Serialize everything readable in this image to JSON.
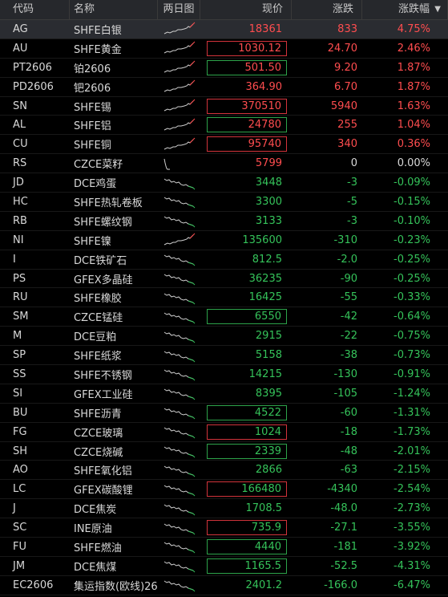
{
  "header": {
    "code": "代码",
    "name": "名称",
    "spark": "两日图",
    "price": "现价",
    "change": "涨跌",
    "pct": "涨跌幅",
    "sort_icon": "sort-desc-icon"
  },
  "colors": {
    "up": "#ff4d4f",
    "down": "#35c35a",
    "flat": "#d8d8d8",
    "box_red": "#d2333b",
    "box_green": "#2da34a"
  },
  "rows": [
    {
      "code": "AG",
      "name": "SHFE白银",
      "price": "18361",
      "change": "833",
      "pct": "4.75%",
      "dir": "up",
      "box": "",
      "trend": "up"
    },
    {
      "code": "AU",
      "name": "SHFE黄金",
      "price": "1030.12",
      "change": "24.70",
      "pct": "2.46%",
      "dir": "up",
      "box": "red",
      "trend": "up"
    },
    {
      "code": "PT2606",
      "name": "铂2606",
      "price": "501.50",
      "change": "9.20",
      "pct": "1.87%",
      "dir": "up",
      "box": "green",
      "trend": "up"
    },
    {
      "code": "PD2606",
      "name": "钯2606",
      "price": "364.90",
      "change": "6.70",
      "pct": "1.87%",
      "dir": "up",
      "box": "",
      "trend": "up"
    },
    {
      "code": "SN",
      "name": "SHFE锡",
      "price": "370510",
      "change": "5940",
      "pct": "1.63%",
      "dir": "up",
      "box": "red",
      "trend": "up"
    },
    {
      "code": "AL",
      "name": "SHFE铝",
      "price": "24780",
      "change": "255",
      "pct": "1.04%",
      "dir": "up",
      "box": "green",
      "trend": "up"
    },
    {
      "code": "CU",
      "name": "SHFE铜",
      "price": "95740",
      "change": "340",
      "pct": "0.36%",
      "dir": "up",
      "box": "red",
      "trend": "up"
    },
    {
      "code": "RS",
      "name": "CZCE菜籽",
      "price": "5799",
      "change": "0",
      "pct": "0.00%",
      "dir": "up",
      "change_dir": "flat",
      "box": "",
      "trend": "flat"
    },
    {
      "code": "JD",
      "name": "DCE鸡蛋",
      "price": "3448",
      "change": "-3",
      "pct": "-0.09%",
      "dir": "down",
      "box": "",
      "trend": "down"
    },
    {
      "code": "HC",
      "name": "SHFE热轧卷板",
      "price": "3300",
      "change": "-5",
      "pct": "-0.15%",
      "dir": "down",
      "box": "",
      "trend": "down"
    },
    {
      "code": "RB",
      "name": "SHFE螺纹钢",
      "price": "3133",
      "change": "-3",
      "pct": "-0.10%",
      "dir": "down",
      "box": "",
      "trend": "down"
    },
    {
      "code": "NI",
      "name": "SHFE镍",
      "price": "135600",
      "change": "-310",
      "pct": "-0.23%",
      "dir": "down",
      "box": "",
      "trend": "up"
    },
    {
      "code": "I",
      "name": "DCE铁矿石",
      "price": "812.5",
      "change": "-2.0",
      "pct": "-0.25%",
      "dir": "down",
      "box": "",
      "trend": "down"
    },
    {
      "code": "PS",
      "name": "GFEX多晶硅",
      "price": "36235",
      "change": "-90",
      "pct": "-0.25%",
      "dir": "down",
      "box": "",
      "trend": "down"
    },
    {
      "code": "RU",
      "name": "SHFE橡胶",
      "price": "16425",
      "change": "-55",
      "pct": "-0.33%",
      "dir": "down",
      "box": "",
      "trend": "down"
    },
    {
      "code": "SM",
      "name": "CZCE锰硅",
      "price": "6550",
      "change": "-42",
      "pct": "-0.64%",
      "dir": "down",
      "box": "green",
      "trend": "down"
    },
    {
      "code": "M",
      "name": "DCE豆粕",
      "price": "2915",
      "change": "-22",
      "pct": "-0.75%",
      "dir": "down",
      "box": "",
      "trend": "down"
    },
    {
      "code": "SP",
      "name": "SHFE纸浆",
      "price": "5158",
      "change": "-38",
      "pct": "-0.73%",
      "dir": "down",
      "box": "",
      "trend": "down"
    },
    {
      "code": "SS",
      "name": "SHFE不锈钢",
      "price": "14215",
      "change": "-130",
      "pct": "-0.91%",
      "dir": "down",
      "box": "",
      "trend": "down"
    },
    {
      "code": "SI",
      "name": "GFEX工业硅",
      "price": "8395",
      "change": "-105",
      "pct": "-1.24%",
      "dir": "down",
      "box": "",
      "trend": "down"
    },
    {
      "code": "BU",
      "name": "SHFE沥青",
      "price": "4522",
      "change": "-60",
      "pct": "-1.31%",
      "dir": "down",
      "box": "green",
      "trend": "down"
    },
    {
      "code": "FG",
      "name": "CZCE玻璃",
      "price": "1024",
      "change": "-18",
      "pct": "-1.73%",
      "dir": "down",
      "box": "red",
      "trend": "down"
    },
    {
      "code": "SH",
      "name": "CZCE烧碱",
      "price": "2339",
      "change": "-48",
      "pct": "-2.01%",
      "dir": "down",
      "box": "green",
      "trend": "down"
    },
    {
      "code": "AO",
      "name": "SHFE氧化铝",
      "price": "2866",
      "change": "-63",
      "pct": "-2.15%",
      "dir": "down",
      "box": "",
      "trend": "down"
    },
    {
      "code": "LC",
      "name": "GFEX碳酸锂",
      "price": "166480",
      "change": "-4340",
      "pct": "-2.54%",
      "dir": "down",
      "box": "red",
      "trend": "down"
    },
    {
      "code": "J",
      "name": "DCE焦炭",
      "price": "1708.5",
      "change": "-48.0",
      "pct": "-2.73%",
      "dir": "down",
      "box": "",
      "trend": "down"
    },
    {
      "code": "SC",
      "name": "INE原油",
      "price": "735.9",
      "change": "-27.1",
      "pct": "-3.55%",
      "dir": "down",
      "box": "red",
      "trend": "down"
    },
    {
      "code": "FU",
      "name": "SHFE燃油",
      "price": "4440",
      "change": "-181",
      "pct": "-3.92%",
      "dir": "down",
      "box": "green",
      "trend": "down"
    },
    {
      "code": "JM",
      "name": "DCE焦煤",
      "price": "1165.5",
      "change": "-52.5",
      "pct": "-4.31%",
      "dir": "down",
      "box": "green",
      "trend": "down"
    },
    {
      "code": "EC2606",
      "name": "集运指数(欧线)26",
      "price": "2401.2",
      "change": "-166.0",
      "pct": "-6.47%",
      "dir": "down",
      "box": "",
      "trend": "down"
    }
  ]
}
